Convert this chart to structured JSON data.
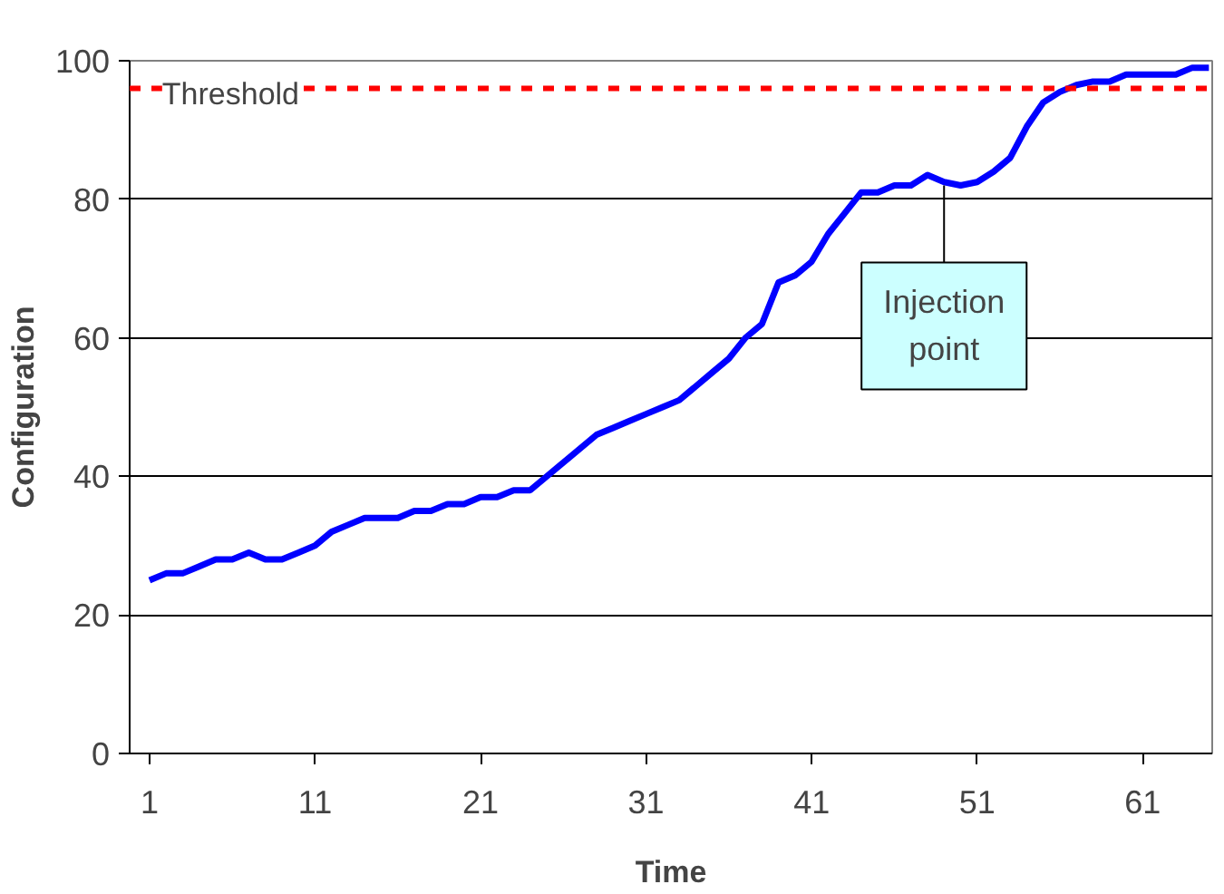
{
  "chart_data": {
    "type": "line",
    "xlabel": "Time",
    "ylabel": "Configuration",
    "x": [
      1,
      2,
      3,
      4,
      5,
      6,
      7,
      8,
      9,
      10,
      11,
      12,
      13,
      14,
      15,
      16,
      17,
      18,
      19,
      20,
      21,
      22,
      23,
      24,
      25,
      26,
      27,
      28,
      29,
      30,
      31,
      32,
      33,
      34,
      35,
      36,
      37,
      38,
      39,
      40,
      41,
      42,
      43,
      44,
      45,
      46,
      47,
      48,
      49,
      50,
      51,
      52,
      53,
      54,
      55,
      56,
      57,
      58,
      59,
      60,
      61,
      62,
      63,
      64,
      65
    ],
    "series": [
      {
        "color": "#0000ff",
        "values": [
          25,
          26,
          26,
          27,
          28,
          28,
          29,
          28,
          28,
          29,
          30,
          32,
          33,
          34,
          34,
          34,
          35,
          35,
          36,
          36,
          37,
          37,
          38,
          38,
          40,
          42,
          44,
          46,
          47,
          48,
          49,
          50,
          51,
          53,
          55,
          57,
          60,
          62,
          68,
          69,
          71,
          75,
          78,
          81,
          81,
          82,
          82,
          83.5,
          82.5,
          82,
          82.5,
          84,
          86,
          90.5,
          94,
          95.5,
          96.5,
          97,
          97,
          98,
          98,
          98,
          98,
          99,
          99
        ]
      }
    ],
    "xlim": [
      -0.2,
      65.2
    ],
    "xticks": [
      1,
      11,
      21,
      31,
      41,
      51,
      61
    ],
    "ylim": [
      0,
      100
    ],
    "yticks": [
      0,
      20,
      40,
      60,
      80,
      100
    ],
    "grid": "y",
    "marker": "none",
    "line_style": "solid",
    "ref_lines": [
      {
        "axis": "y",
        "value": 96,
        "label": "Threshold",
        "color": "#ff0000",
        "line_style": "dashed"
      }
    ],
    "annotations": [
      {
        "text": "Injection\npoint",
        "x": 49,
        "y": 82
      }
    ]
  }
}
